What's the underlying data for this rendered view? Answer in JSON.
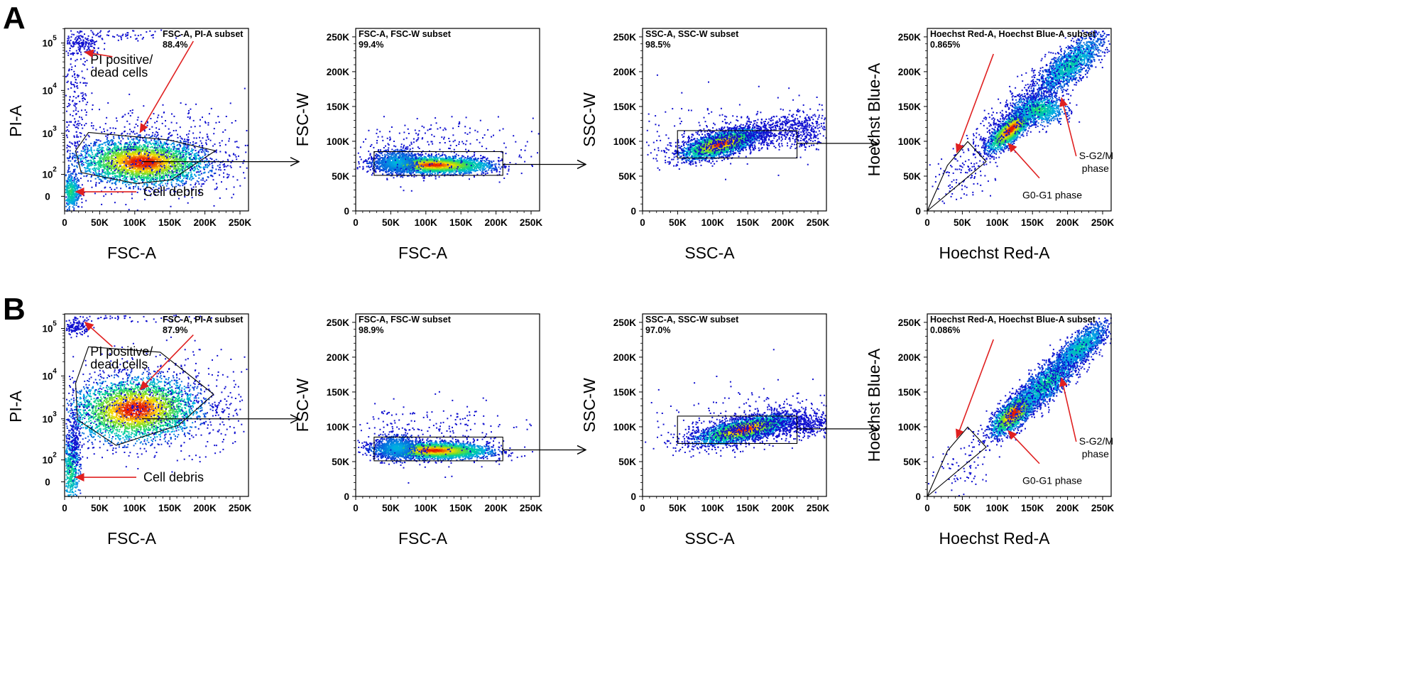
{
  "rows": [
    {
      "letter": "A",
      "plots": [
        {
          "gate_label": "FSC-A, PI-A subset",
          "percent": "88.4%",
          "xlabel": "FSC-A",
          "ylabel": "PI-A",
          "x_ticks": [
            "0",
            "50K",
            "100K",
            "150K",
            "200K",
            "250K"
          ],
          "y_ticks": [
            "0",
            "10",
            "10",
            "10",
            "10"
          ],
          "y_exps": [
            "",
            "2",
            "3",
            "4",
            "5"
          ],
          "annotations": [
            "PI positive/",
            "dead cells",
            "Cell debris"
          ]
        },
        {
          "gate_label": "FSC-A, FSC-W subset",
          "percent": "99.4%",
          "xlabel": "FSC-A",
          "ylabel": "FSC-W",
          "x_ticks": [
            "0",
            "50K",
            "100K",
            "150K",
            "200K",
            "250K"
          ],
          "y_ticks": [
            "0",
            "50K",
            "100K",
            "150K",
            "200K",
            "250K"
          ]
        },
        {
          "gate_label": "SSC-A, SSC-W subset",
          "percent": "98.5%",
          "xlabel": "SSC-A",
          "ylabel": "SSC-W",
          "x_ticks": [
            "0",
            "50K",
            "100K",
            "150K",
            "200K",
            "250K"
          ],
          "y_ticks": [
            "0",
            "50K",
            "100K",
            "150K",
            "200K",
            "250K"
          ]
        },
        {
          "gate_label": "Hoechst Red-A, Hoechst Blue-A subset",
          "percent": "0.865%",
          "xlabel": "Hoechst Red-A",
          "ylabel": "Hoechst Blue-A",
          "x_ticks": [
            "0",
            "50K",
            "100K",
            "150K",
            "200K",
            "250K"
          ],
          "y_ticks": [
            "0",
            "50K",
            "100K",
            "150K",
            "200K",
            "250K"
          ],
          "annotations": [
            "S-G2/M",
            "phase",
            "G0-G1 phase"
          ]
        }
      ]
    },
    {
      "letter": "B",
      "plots": [
        {
          "gate_label": "FSC-A, PI-A subset",
          "percent": "87.9%",
          "xlabel": "FSC-A",
          "ylabel": "PI-A",
          "x_ticks": [
            "0",
            "50K",
            "100K",
            "150K",
            "200K",
            "250K"
          ],
          "y_ticks": [
            "0",
            "10",
            "10",
            "10",
            "10"
          ],
          "y_exps": [
            "",
            "2",
            "3",
            "4",
            "5"
          ],
          "annotations": [
            "PI positive/",
            "dead cells",
            "Cell debris"
          ]
        },
        {
          "gate_label": "FSC-A, FSC-W subset",
          "percent": "98.9%",
          "xlabel": "FSC-A",
          "ylabel": "FSC-W",
          "x_ticks": [
            "0",
            "50K",
            "100K",
            "150K",
            "200K",
            "250K"
          ],
          "y_ticks": [
            "0",
            "50K",
            "100K",
            "150K",
            "200K",
            "250K"
          ]
        },
        {
          "gate_label": "SSC-A, SSC-W subset",
          "percent": "97.0%",
          "xlabel": "SSC-A",
          "ylabel": "SSC-W",
          "x_ticks": [
            "0",
            "50K",
            "100K",
            "150K",
            "200K",
            "250K"
          ],
          "y_ticks": [
            "0",
            "50K",
            "100K",
            "150K",
            "200K",
            "250K"
          ]
        },
        {
          "gate_label": "Hoechst Red-A, Hoechst Blue-A subset",
          "percent": "0.086%",
          "xlabel": "Hoechst Red-A",
          "ylabel": "Hoechst Blue-A",
          "x_ticks": [
            "0",
            "50K",
            "100K",
            "150K",
            "200K",
            "250K"
          ],
          "y_ticks": [
            "0",
            "50K",
            "100K",
            "150K",
            "200K",
            "250K"
          ],
          "annotations": [
            "S-G2/M",
            "phase",
            "G0-G1 phase"
          ]
        }
      ]
    }
  ],
  "colors": {
    "density_low": "#1010d0",
    "density_mid": "#00d0c0",
    "density_high": "#e02000",
    "annotation_arrow": "#e02020",
    "axis": "#000000"
  },
  "chart_data": [
    {
      "type": "scatter",
      "panel": "A",
      "title": "FSC-A, PI-A subset",
      "xlabel": "FSC-A",
      "ylabel": "PI-A",
      "xlim": [
        0,
        262144
      ],
      "gate_percent": 88.4
    },
    {
      "type": "scatter",
      "panel": "A",
      "title": "FSC-A, FSC-W subset",
      "xlabel": "FSC-A",
      "ylabel": "FSC-W",
      "xlim": [
        0,
        262144
      ],
      "ylim": [
        0,
        262144
      ],
      "gate_percent": 99.4
    },
    {
      "type": "scatter",
      "panel": "A",
      "title": "SSC-A, SSC-W subset",
      "xlabel": "SSC-A",
      "ylabel": "SSC-W",
      "xlim": [
        0,
        262144
      ],
      "ylim": [
        0,
        262144
      ],
      "gate_percent": 98.5
    },
    {
      "type": "scatter",
      "panel": "A",
      "title": "Hoechst Red-A, Hoechst Blue-A subset",
      "xlabel": "Hoechst Red-A",
      "ylabel": "Hoechst Blue-A",
      "xlim": [
        0,
        262144
      ],
      "ylim": [
        0,
        262144
      ],
      "gate_percent": 0.865
    },
    {
      "type": "scatter",
      "panel": "B",
      "title": "FSC-A, PI-A subset",
      "xlabel": "FSC-A",
      "ylabel": "PI-A",
      "xlim": [
        0,
        262144
      ],
      "gate_percent": 87.9
    },
    {
      "type": "scatter",
      "panel": "B",
      "title": "FSC-A, FSC-W subset",
      "xlabel": "FSC-A",
      "ylabel": "FSC-W",
      "xlim": [
        0,
        262144
      ],
      "ylim": [
        0,
        262144
      ],
      "gate_percent": 98.9
    },
    {
      "type": "scatter",
      "panel": "B",
      "title": "SSC-A, SSC-W subset",
      "xlabel": "SSC-A",
      "ylabel": "SSC-W",
      "xlim": [
        0,
        262144
      ],
      "ylim": [
        0,
        262144
      ],
      "gate_percent": 97.0
    },
    {
      "type": "scatter",
      "panel": "B",
      "title": "Hoechst Red-A, Hoechst Blue-A subset",
      "xlabel": "Hoechst Red-A",
      "ylabel": "Hoechst Blue-A",
      "xlim": [
        0,
        262144
      ],
      "ylim": [
        0,
        262144
      ],
      "gate_percent": 0.086
    }
  ]
}
